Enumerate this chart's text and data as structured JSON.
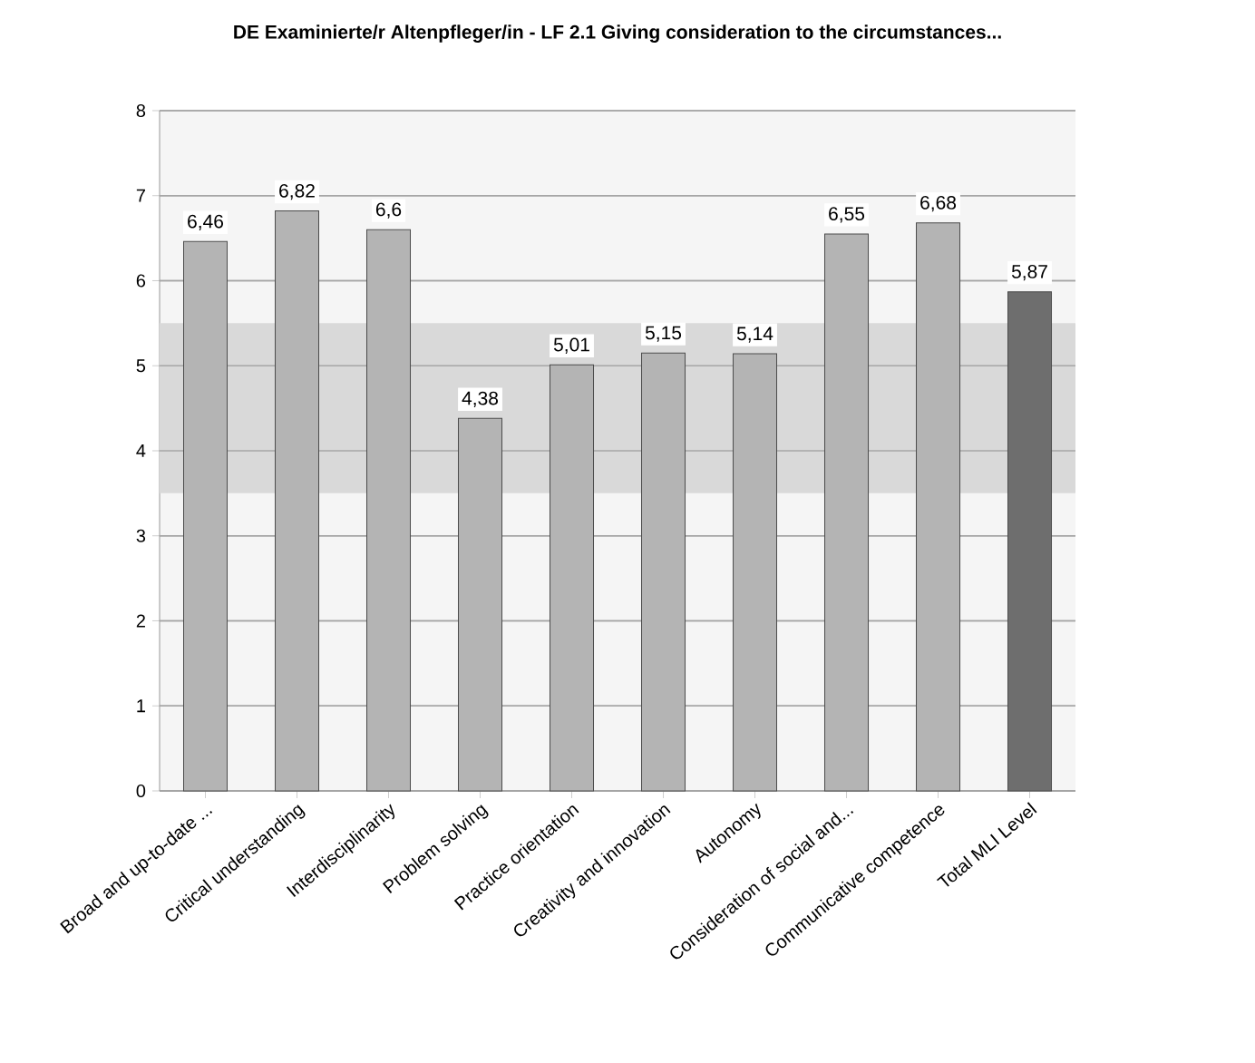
{
  "chart_data": {
    "type": "bar",
    "title": "DE Examinierte/r Altenpfleger/in - LF 2.1 Giving consideration to the circumstances...",
    "categories": [
      "Broad and up-to-date ...",
      "Critical understanding",
      "Interdisciplinarity",
      "Problem solving",
      "Practice orientation",
      "Creativity and innovation",
      "Autonomy",
      "Consideration of social and...",
      "Communicative competence",
      "Total MLI Level"
    ],
    "values": [
      6.46,
      6.82,
      6.6,
      4.38,
      5.01,
      5.15,
      5.14,
      6.55,
      6.68,
      5.87
    ],
    "value_labels": [
      "6,46",
      "6,82",
      "6,6",
      "4,38",
      "5,01",
      "5,15",
      "5,14",
      "6,55",
      "6,68",
      "5,87"
    ],
    "colors": [
      "#b4b4b4",
      "#b4b4b4",
      "#b4b4b4",
      "#b4b4b4",
      "#b4b4b4",
      "#b4b4b4",
      "#b4b4b4",
      "#b4b4b4",
      "#b4b4b4",
      "#6e6e6e"
    ],
    "ylim": [
      0,
      8
    ],
    "yticks": [
      0,
      1,
      2,
      3,
      4,
      5,
      6,
      7,
      8
    ],
    "grid": "y",
    "bands": [
      {
        "axis": "y",
        "from": 3.5,
        "to": 5.5,
        "color": "#d9d9d9"
      }
    ]
  }
}
